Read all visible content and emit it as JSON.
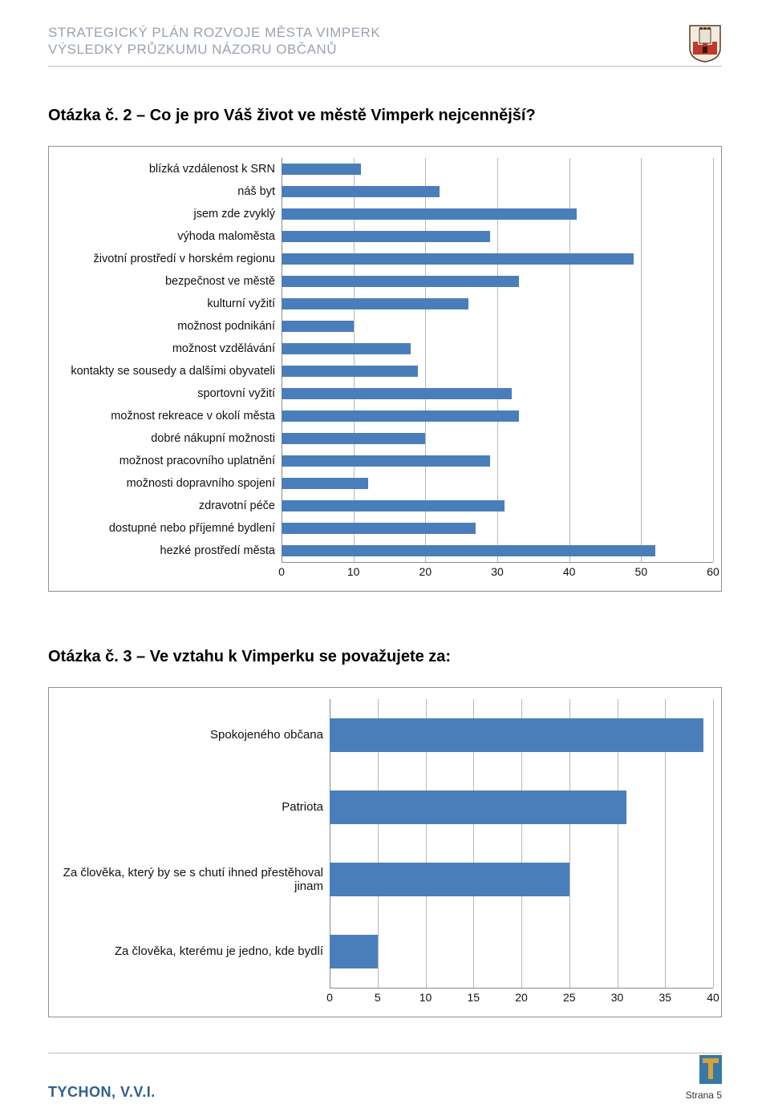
{
  "header": {
    "line1": "STRATEGICKÝ PLÁN ROZVOJE MĚSTA VIMPERK",
    "line2": "VÝSLEDKY PRŮZKUMU NÁZORU OBČANŮ"
  },
  "crest": {
    "wall_color": "#c0392b",
    "tower_color": "#f0ece1",
    "outline_color": "#5a3a1a"
  },
  "question1": {
    "title": "Otázka č. 2 – Co je pro Váš život ve městě Vimperk nejcennější?",
    "chart": {
      "type": "bar",
      "orientation": "horizontal",
      "bar_color": "#4a7ebb",
      "grid_color": "#b8b8b8",
      "axis_color": "#8a8a8a",
      "background_color": "#ffffff",
      "xlim": [
        0,
        60
      ],
      "xtick_step": 10,
      "xticks": [
        "0",
        "10",
        "20",
        "30",
        "40",
        "50",
        "60"
      ],
      "label_fontsize": 14.5,
      "tick_fontsize": 14,
      "categories": [
        "blízká vzdálenost k SRN",
        "náš byt",
        "jsem zde zvyklý",
        "výhoda maloměsta",
        "životní prostředí v horském regionu",
        "bezpečnost ve městě",
        "kulturní vyžití",
        "možnost podnikání",
        "možnost vzdělávání",
        "kontakty se sousedy a dalšími obyvateli",
        "sportovní vyžití",
        "možnost rekreace v okolí města",
        "dobré nákupní možnosti",
        "možnost pracovního uplatnění",
        "možnosti dopravního spojení",
        "zdravotní péče",
        "dostupné nebo příjemné bydlení",
        "hezké prostředí města"
      ],
      "values": [
        11,
        22,
        41,
        29,
        49,
        33,
        26,
        10,
        18,
        19,
        32,
        33,
        20,
        29,
        12,
        31,
        27,
        52
      ]
    }
  },
  "question2": {
    "title": "Otázka č. 3 – Ve vztahu k Vimperku se považujete za:",
    "chart": {
      "type": "bar",
      "orientation": "horizontal",
      "bar_color": "#4a7ebb",
      "grid_color": "#b8b8b8",
      "axis_color": "#8a8a8a",
      "background_color": "#ffffff",
      "xlim": [
        0,
        40
      ],
      "xtick_step": 5,
      "xticks": [
        "0",
        "5",
        "10",
        "15",
        "20",
        "25",
        "30",
        "35",
        "40"
      ],
      "label_fontsize": 15,
      "tick_fontsize": 14,
      "categories": [
        "Spokojeného občana",
        "Patriota",
        "Za člověka, který by se s chutí ihned přestěhoval jinam",
        "Za člověka, kterému je jedno, kde bydlí"
      ],
      "values": [
        39,
        31,
        25,
        5
      ]
    }
  },
  "footer": {
    "left": "TYCHON, V.V.I.",
    "page_label": "Strana 5",
    "logo_bg": "#3678a6",
    "logo_accent": "#d8a13a"
  }
}
